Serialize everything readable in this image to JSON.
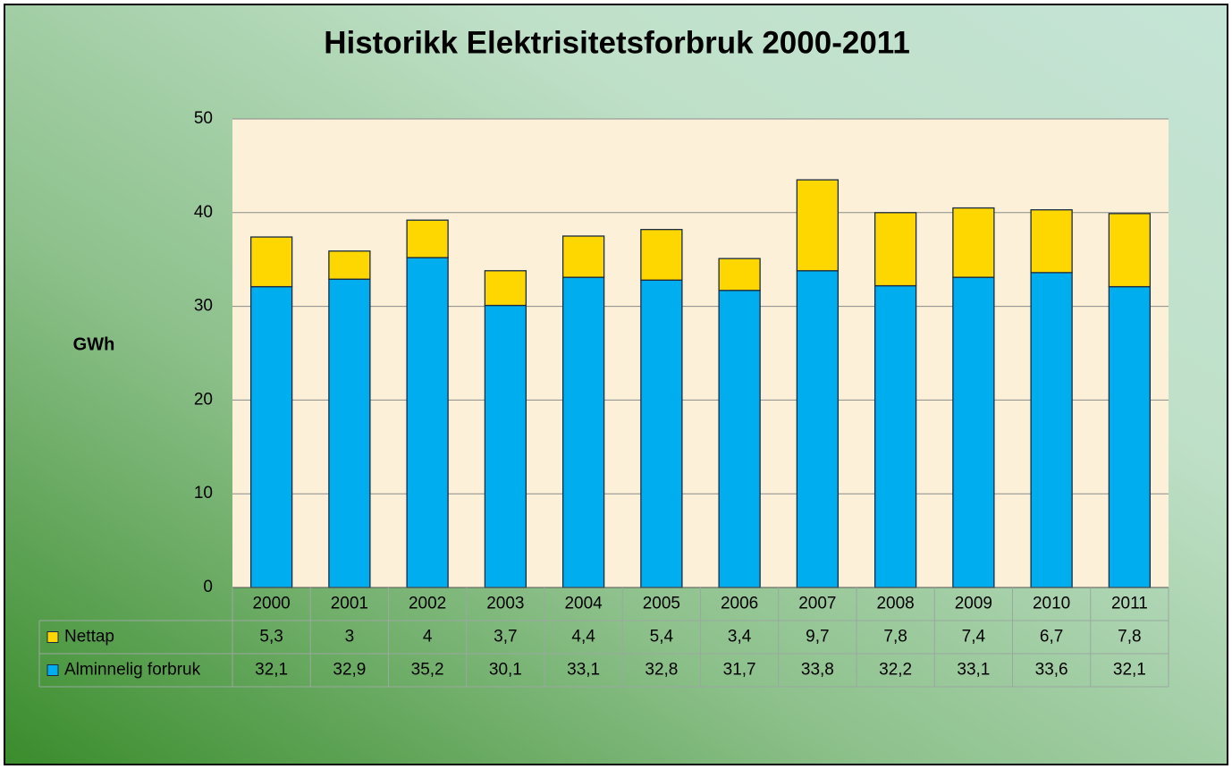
{
  "chart_data": {
    "type": "stacked_bar",
    "title": "Historikk Elektrisitetsforbruk 2000-2011",
    "y_label": "GWh",
    "categories": [
      "2000",
      "2001",
      "2002",
      "2003",
      "2004",
      "2005",
      "2006",
      "2007",
      "2008",
      "2009",
      "2010",
      "2011"
    ],
    "series": [
      {
        "name": "Nettap",
        "color": "#ffd700",
        "values": [
          5.3,
          3,
          4,
          3.7,
          4.4,
          5.4,
          3.4,
          9.7,
          7.8,
          7.4,
          6.7,
          7.8
        ],
        "value_labels": [
          "5,3",
          "3",
          "4",
          "3,7",
          "4,4",
          "5,4",
          "3,4",
          "9,7",
          "7,8",
          "7,4",
          "6,7",
          "7,8"
        ]
      },
      {
        "name": "Alminnelig forbruk",
        "color": "#00aeef",
        "values": [
          32.1,
          32.9,
          35.2,
          30.1,
          33.1,
          32.8,
          31.7,
          33.8,
          32.2,
          33.1,
          33.6,
          32.1
        ],
        "value_labels": [
          "32,1",
          "32,9",
          "35,2",
          "30,1",
          "33,1",
          "32,8",
          "31,7",
          "33,8",
          "32,2",
          "33,1",
          "33,6",
          "32,1"
        ]
      }
    ],
    "ylim": [
      0,
      50
    ],
    "yticks": [
      0,
      10,
      20,
      30,
      40,
      50
    ],
    "grid": true,
    "data_table": true
  }
}
